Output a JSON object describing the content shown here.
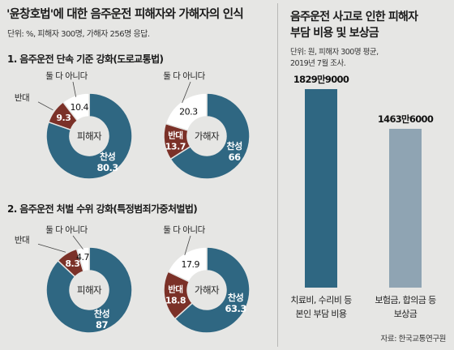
{
  "left_panel": {
    "title": "'윤창호법'에 대한 음주운전 피해자와 가해자의 인식",
    "unit_note": "단위: %, 피해자 300명, 가해자 256명 응답."
  },
  "right_panel": {
    "title_line1": "음주운전 사고로 인한 피해자",
    "title_line2": "부담 비용 및 보상금",
    "unit_line1": "단위: 원, 피해자 300명 평균,",
    "unit_line2": "2019년 7월 조사."
  },
  "source": "자료: 한국교통연구원",
  "colors": {
    "agree": "#2f6782",
    "oppose": "#7b3128",
    "neither": "#ffffff",
    "bar1": "#2f6782",
    "bar2": "#8fa4b3",
    "background": "#e6e6e4"
  },
  "chart_data": [
    {
      "type": "pie",
      "title": "1. 음주운전 단속 기준 강화(도로교통법)",
      "center_label": "피해자",
      "slices": [
        {
          "label": "찬성",
          "value": 80.3,
          "value_text": "80.3"
        },
        {
          "label": "반대",
          "value": 9.3,
          "value_text": "9.3"
        },
        {
          "label": "둘 다 아니다",
          "value": 10.4,
          "value_text": "10.4"
        }
      ]
    },
    {
      "type": "pie",
      "title": "1. 음주운전 단속 기준 강화(도로교통법)",
      "center_label": "가해자",
      "slices": [
        {
          "label": "찬성",
          "value": 66,
          "value_text": "66"
        },
        {
          "label": "반대",
          "value": 13.7,
          "value_text": "13.7"
        },
        {
          "label": "둘 다 아니다",
          "value": 20.3,
          "value_text": "20.3"
        }
      ]
    },
    {
      "type": "pie",
      "title": "2. 음주운전 처벌 수위 강화(특정범죄가중처벌법)",
      "center_label": "피해자",
      "slices": [
        {
          "label": "찬성",
          "value": 87,
          "value_text": "87"
        },
        {
          "label": "반대",
          "value": 8.3,
          "value_text": "8.3"
        },
        {
          "label": "둘 다 아니다",
          "value": 4.7,
          "value_text": "4.7"
        }
      ]
    },
    {
      "type": "pie",
      "title": "2. 음주운전 처벌 수위 강화(특정범죄가중처벌법)",
      "center_label": "가해자",
      "slices": [
        {
          "label": "찬성",
          "value": 63.3,
          "value_text": "63.3"
        },
        {
          "label": "반대",
          "value": 18.8,
          "value_text": "18.8"
        },
        {
          "label": "둘 다 아니다",
          "value": 17.9,
          "value_text": "17.9"
        }
      ]
    },
    {
      "type": "bar",
      "categories": [
        "치료비, 수리비 등 본인 부담 비용",
        "보험금, 합의금 등 보상금"
      ],
      "category_lines": [
        [
          "치료비, 수리비 등",
          "본인 부담 비용"
        ],
        [
          "보험금, 합의금 등",
          "보상금"
        ]
      ],
      "values": [
        18299000,
        14636000
      ],
      "value_labels": [
        "1829만9000",
        "1463만6000"
      ]
    }
  ]
}
